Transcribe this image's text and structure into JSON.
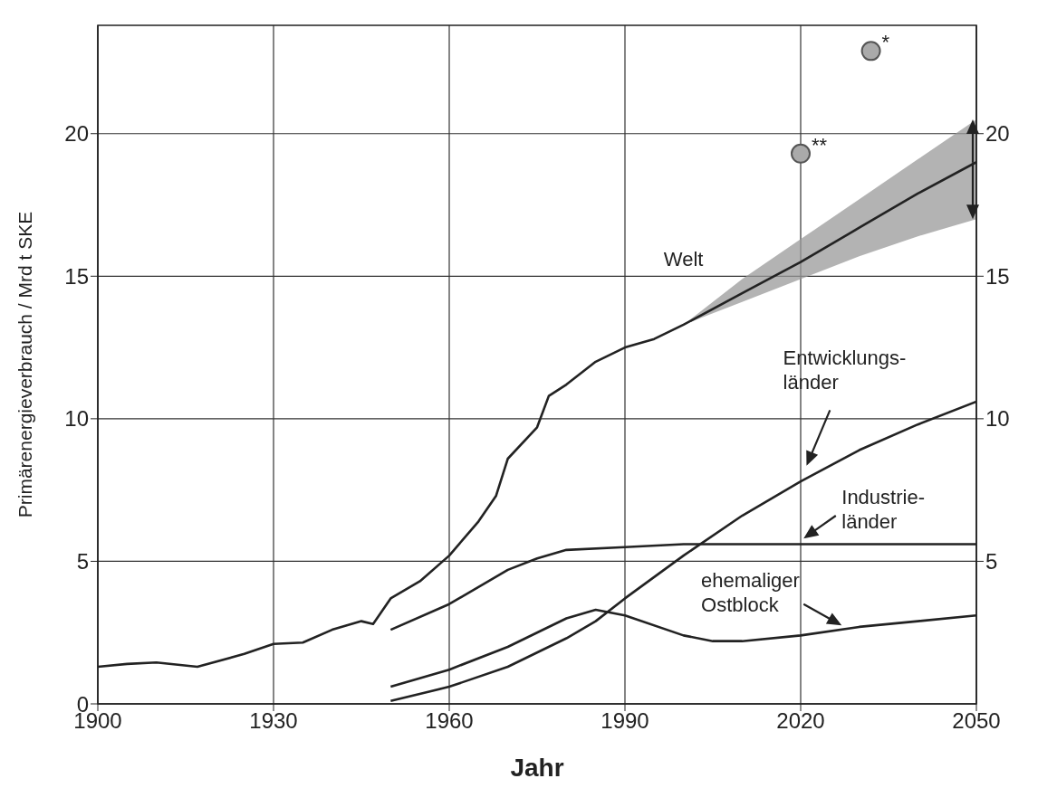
{
  "chart_data": {
    "type": "line",
    "xlabel": "Jahr",
    "ylabel": "Primärenergieverbrauch / Mrd t SKE",
    "xlim": [
      1900,
      2050
    ],
    "xticks": [
      1900,
      1930,
      1960,
      1990,
      2020,
      2050
    ],
    "ylim": [
      0,
      23.8
    ],
    "yticks": [
      0,
      5,
      10,
      15,
      20
    ],
    "y2lim": [
      0,
      23.8
    ],
    "y2ticks": [
      5,
      10,
      15,
      20
    ],
    "grid": true,
    "marker": "none",
    "line_style": "solid",
    "series": [
      {
        "name": "Welt",
        "color": "#222222",
        "x": [
          1900,
          1905,
          1910,
          1917,
          1925,
          1930,
          1935,
          1940,
          1945,
          1947,
          1950,
          1955,
          1960,
          1965,
          1968,
          1970,
          1975,
          1977,
          1980,
          1985,
          1990,
          1995,
          2000,
          2010,
          2020,
          2030,
          2040,
          2050
        ],
        "values": [
          1.3,
          1.4,
          1.45,
          1.3,
          1.75,
          2.1,
          2.15,
          2.6,
          2.9,
          2.8,
          3.7,
          4.3,
          5.2,
          6.4,
          7.3,
          8.6,
          9.7,
          10.8,
          11.2,
          12.0,
          12.5,
          12.8,
          13.3,
          14.4,
          15.5,
          16.7,
          17.9,
          19.0
        ],
        "lower": [
          null,
          null,
          null,
          null,
          null,
          null,
          null,
          null,
          null,
          null,
          null,
          null,
          null,
          null,
          null,
          null,
          null,
          null,
          null,
          null,
          null,
          null,
          13.3,
          14.1,
          14.9,
          15.7,
          16.4,
          17.0
        ],
        "upper": [
          null,
          null,
          null,
          null,
          null,
          null,
          null,
          null,
          null,
          null,
          null,
          null,
          null,
          null,
          null,
          null,
          null,
          null,
          null,
          null,
          null,
          null,
          13.3,
          14.9,
          16.3,
          17.7,
          19.1,
          20.5
        ]
      },
      {
        "name": "Entwicklungs-\nländer",
        "color": "#222222",
        "x": [
          1950,
          1960,
          1970,
          1980,
          1985,
          1990,
          2000,
          2010,
          2020,
          2030,
          2040,
          2050
        ],
        "values": [
          0.1,
          0.6,
          1.3,
          2.3,
          2.9,
          3.7,
          5.2,
          6.6,
          7.8,
          8.9,
          9.8,
          10.6
        ]
      },
      {
        "name": "Industrie-\nländer",
        "color": "#222222",
        "x": [
          1950,
          1960,
          1970,
          1975,
          1980,
          1990,
          2000,
          2050
        ],
        "values": [
          2.6,
          3.5,
          4.7,
          5.1,
          5.4,
          5.5,
          5.6,
          5.6
        ]
      },
      {
        "name": "ehemaliger\nOstblock",
        "color": "#222222",
        "x": [
          1950,
          1960,
          1970,
          1980,
          1985,
          1990,
          2000,
          2005,
          2010,
          2020,
          2030,
          2040,
          2050
        ],
        "values": [
          0.6,
          1.2,
          2.0,
          3.0,
          3.3,
          3.1,
          2.4,
          2.2,
          2.2,
          2.4,
          2.7,
          2.9,
          3.1
        ]
      },
      {
        "type": "scatter",
        "color": "#aaaaaa",
        "marker": "circle",
        "x": [
          2020,
          2032
        ],
        "values": [
          19.3,
          22.9
        ]
      }
    ],
    "annotations": [
      {
        "text": "**",
        "x": 2020,
        "y": 19.3
      },
      {
        "text": "*",
        "x": 2032,
        "y": 22.9
      }
    ]
  }
}
